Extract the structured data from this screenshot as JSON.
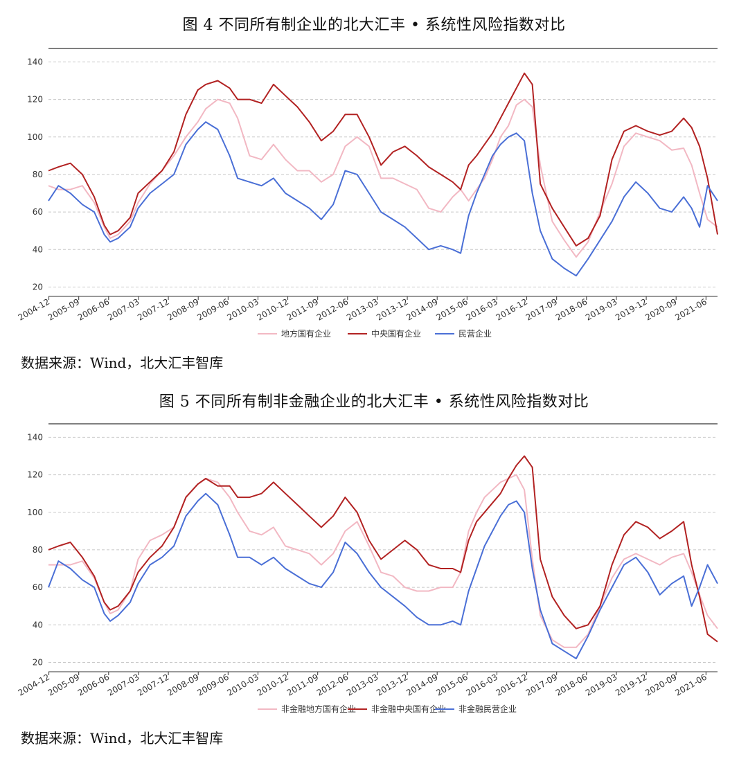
{
  "charts": [
    {
      "title": "图 4  不同所有制企业的北大汇丰 • 系统性风险指数对比",
      "source": "数据来源：Wind，北大汇丰智库",
      "chart_data": {
        "type": "line",
        "title": "不同所有制企业的北大汇丰 • 系统性风险指数对比",
        "ylim": [
          15,
          142
        ],
        "yticks": [
          20,
          40,
          60,
          80,
          100,
          120,
          140
        ],
        "xlim": [
          2004.95,
          2021.75
        ],
        "xtick_values": [
          2004.96,
          2005.71,
          2006.46,
          2007.21,
          2007.96,
          2008.71,
          2009.46,
          2010.21,
          2010.96,
          2011.71,
          2012.46,
          2013.21,
          2013.96,
          2014.71,
          2015.46,
          2016.21,
          2016.96,
          2017.71,
          2018.46,
          2019.21,
          2019.96,
          2020.71,
          2021.46
        ],
        "xtick_labels": [
          "2004-12",
          "2005-09",
          "2006-06",
          "2007-03",
          "2007-12",
          "2008-09",
          "2009-06",
          "2010-03",
          "2010-12",
          "2011-09",
          "2012-06",
          "2013-03",
          "2013-12",
          "2014-09",
          "2015-06",
          "2016-03",
          "2016-12",
          "2017-09",
          "2018-06",
          "2019-03",
          "2019-12",
          "2020-09",
          "2021-06"
        ],
        "grid": "horizontal-dashed",
        "legend_position": "bottom",
        "x": [
          2004.95,
          2005.2,
          2005.5,
          2005.8,
          2006.1,
          2006.35,
          2006.5,
          2006.7,
          2007.0,
          2007.2,
          2007.5,
          2007.8,
          2008.1,
          2008.4,
          2008.7,
          2008.9,
          2009.2,
          2009.5,
          2009.7,
          2010.0,
          2010.3,
          2010.6,
          2010.9,
          2011.2,
          2011.5,
          2011.8,
          2012.1,
          2012.4,
          2012.7,
          2013.0,
          2013.3,
          2013.6,
          2013.9,
          2014.2,
          2014.5,
          2014.8,
          2015.1,
          2015.3,
          2015.5,
          2015.7,
          2015.9,
          2016.1,
          2016.3,
          2016.5,
          2016.7,
          2016.9,
          2017.1,
          2017.3,
          2017.6,
          2017.9,
          2018.2,
          2018.5,
          2018.8,
          2019.1,
          2019.4,
          2019.7,
          2020.0,
          2020.3,
          2020.6,
          2020.9,
          2021.1,
          2021.3,
          2021.5,
          2021.75
        ],
        "series": [
          {
            "name": "地方国有企业",
            "color": "#f2b8c3",
            "values": [
              74,
              72,
              72,
              74,
              65,
              52,
              46,
              48,
              55,
              65,
              75,
              82,
              90,
              100,
              108,
              115,
              120,
              118,
              110,
              90,
              88,
              96,
              88,
              82,
              82,
              76,
              80,
              95,
              100,
              95,
              78,
              78,
              75,
              72,
              62,
              60,
              68,
              72,
              66,
              72,
              78,
              88,
              100,
              106,
              117,
              120,
              116,
              85,
              55,
              45,
              36,
              44,
              60,
              75,
              95,
              102,
              100,
              98,
              93,
              94,
              85,
              70,
              56,
              52
            ]
          },
          {
            "name": "中央国有企业",
            "color": "#b22222",
            "values": [
              82,
              84,
              86,
              80,
              68,
              53,
              48,
              50,
              57,
              70,
              76,
              82,
              92,
              112,
              125,
              128,
              130,
              126,
              120,
              120,
              118,
              128,
              122,
              116,
              108,
              98,
              103,
              112,
              112,
              100,
              85,
              92,
              95,
              90,
              84,
              80,
              76,
              72,
              85,
              90,
              96,
              102,
              110,
              118,
              126,
              134,
              128,
              75,
              62,
              52,
              42,
              46,
              58,
              88,
              103,
              106,
              103,
              101,
              103,
              110,
              105,
              95,
              78,
              48
            ]
          },
          {
            "name": "民营企业",
            "color": "#4a6fd6",
            "values": [
              66,
              74,
              70,
              64,
              60,
              48,
              44,
              46,
              52,
              62,
              70,
              75,
              80,
              96,
              104,
              108,
              104,
              90,
              78,
              76,
              74,
              78,
              70,
              66,
              62,
              56,
              64,
              82,
              80,
              70,
              60,
              56,
              52,
              46,
              40,
              42,
              40,
              38,
              58,
              70,
              80,
              90,
              96,
              100,
              102,
              98,
              70,
              50,
              35,
              30,
              26,
              35,
              45,
              55,
              68,
              76,
              70,
              62,
              60,
              68,
              62,
              52,
              74,
              66
            ]
          }
        ]
      }
    },
    {
      "title": "图 5  不同所有制非金融企业的北大汇丰 • 系统性风险指数对比",
      "source": "数据来源：Wind，北大汇丰智库",
      "chart_data": {
        "type": "line",
        "title": "不同所有制非金融企业的北大汇丰 • 系统性风险指数对比",
        "ylim": [
          15,
          142
        ],
        "yticks": [
          20,
          40,
          60,
          80,
          100,
          120,
          140
        ],
        "xlim": [
          2004.95,
          2021.75
        ],
        "xtick_values": [
          2004.96,
          2005.71,
          2006.46,
          2007.21,
          2007.96,
          2008.71,
          2009.46,
          2010.21,
          2010.96,
          2011.71,
          2012.46,
          2013.21,
          2013.96,
          2014.71,
          2015.46,
          2016.21,
          2016.96,
          2017.71,
          2018.46,
          2019.21,
          2019.96,
          2020.71,
          2021.46
        ],
        "xtick_labels": [
          "2004-12",
          "2005-09",
          "2006-06",
          "2007-03",
          "2007-12",
          "2008-09",
          "2009-06",
          "2010-03",
          "2010-12",
          "2011-09",
          "2012-06",
          "2013-03",
          "2013-12",
          "2014-09",
          "2015-06",
          "2016-03",
          "2016-12",
          "2017-09",
          "2018-06",
          "2019-03",
          "2019-12",
          "2020-09",
          "2021-06"
        ],
        "grid": "horizontal-dashed",
        "legend_position": "bottom",
        "x": [
          2004.95,
          2005.2,
          2005.5,
          2005.8,
          2006.1,
          2006.35,
          2006.5,
          2006.7,
          2007.0,
          2007.2,
          2007.5,
          2007.8,
          2008.1,
          2008.4,
          2008.7,
          2008.9,
          2009.2,
          2009.5,
          2009.7,
          2010.0,
          2010.3,
          2010.6,
          2010.9,
          2011.2,
          2011.5,
          2011.8,
          2012.1,
          2012.4,
          2012.7,
          2013.0,
          2013.3,
          2013.6,
          2013.9,
          2014.2,
          2014.5,
          2014.8,
          2015.1,
          2015.3,
          2015.5,
          2015.7,
          2015.9,
          2016.1,
          2016.3,
          2016.5,
          2016.7,
          2016.9,
          2017.1,
          2017.3,
          2017.6,
          2017.9,
          2018.2,
          2018.5,
          2018.8,
          2019.1,
          2019.4,
          2019.7,
          2020.0,
          2020.3,
          2020.6,
          2020.9,
          2021.1,
          2021.3,
          2021.5,
          2021.75
        ],
        "series": [
          {
            "name": "非金融地方国有企业",
            "color": "#f2b8c3",
            "values": [
              72,
              72,
              72,
              74,
              65,
              52,
              46,
              48,
              58,
              75,
              85,
              88,
              92,
              108,
              115,
              118,
              116,
              108,
              100,
              90,
              88,
              92,
              82,
              80,
              78,
              72,
              78,
              90,
              95,
              82,
              68,
              66,
              60,
              58,
              58,
              60,
              60,
              68,
              90,
              100,
              108,
              112,
              116,
              118,
              120,
              112,
              75,
              45,
              32,
              28,
              28,
              35,
              50,
              65,
              75,
              78,
              75,
              72,
              76,
              78,
              68,
              56,
              45,
              38
            ]
          },
          {
            "name": "非金融中央国有企业",
            "color": "#b22222",
            "values": [
              80,
              82,
              84,
              76,
              66,
              52,
              48,
              50,
              58,
              68,
              76,
              82,
              92,
              108,
              115,
              118,
              114,
              114,
              108,
              108,
              110,
              116,
              110,
              104,
              98,
              92,
              98,
              108,
              100,
              85,
              75,
              80,
              85,
              80,
              72,
              70,
              70,
              68,
              85,
              95,
              100,
              105,
              110,
              118,
              125,
              130,
              124,
              75,
              55,
              45,
              38,
              40,
              50,
              72,
              88,
              95,
              92,
              86,
              90,
              95,
              72,
              55,
              35,
              31
            ]
          },
          {
            "name": "非金融民营企业",
            "color": "#4a6fd6",
            "values": [
              60,
              74,
              70,
              64,
              60,
              46,
              42,
              45,
              52,
              62,
              72,
              76,
              82,
              98,
              106,
              110,
              104,
              88,
              76,
              76,
              72,
              76,
              70,
              66,
              62,
              60,
              68,
              84,
              78,
              68,
              60,
              55,
              50,
              44,
              40,
              40,
              42,
              40,
              58,
              70,
              82,
              90,
              98,
              104,
              106,
              100,
              70,
              48,
              30,
              26,
              22,
              34,
              48,
              60,
              72,
              76,
              68,
              56,
              62,
              66,
              50,
              60,
              72,
              62
            ]
          }
        ]
      }
    }
  ]
}
